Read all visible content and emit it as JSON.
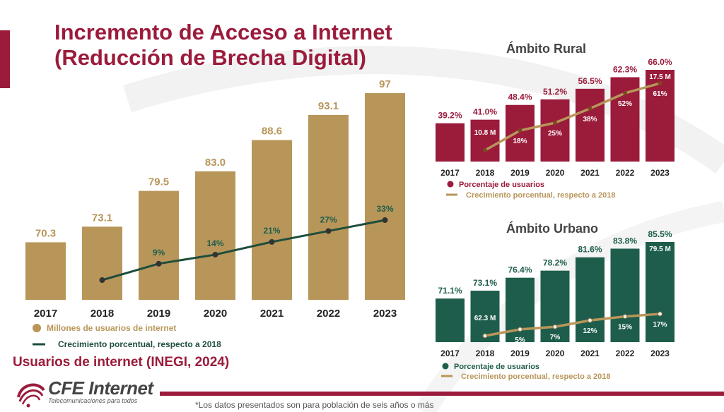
{
  "title_line1": "Incremento de Acceso a Internet",
  "title_line2": "(Reducción de Brecha Digital)",
  "footer": {
    "source": "Usuarios de internet (INEGI, 2024)",
    "logo_brand": "CFE Internet",
    "logo_tagline": "Telecomunicaciones para todos",
    "note": "*Los datos presentados son para población de seis años o más"
  },
  "colors": {
    "brand": "#9b1b3b",
    "gold": "#b8965a",
    "green": "#1e5d4c",
    "line_green": "#1e4d3c",
    "rural": "#9b1b3b",
    "urban": "#1e5d4c"
  },
  "chart_data": [
    {
      "type": "bar",
      "title": "",
      "categories": [
        "2017",
        "2018",
        "2019",
        "2020",
        "2021",
        "2022",
        "2023"
      ],
      "series": [
        {
          "name": "Millones de usuarios de internet",
          "values": [
            70.3,
            73.1,
            79.5,
            83.0,
            88.6,
            93.1,
            97
          ]
        },
        {
          "name": "Crecimiento porcentual, respecto a 2018",
          "type": "line",
          "values": [
            null,
            0,
            9,
            14,
            21,
            27,
            33
          ]
        }
      ],
      "bar_labels": [
        "70.3",
        "73.1",
        "79.5",
        "83.0",
        "88.6",
        "93.1",
        "97"
      ],
      "line_labels": [
        "",
        "",
        "9%",
        "14%",
        "21%",
        "27%",
        "33%"
      ],
      "legend": [
        "Millones de usuarios de internet",
        "Crecimiento porcentual, respecto a 2018"
      ],
      "grid": false,
      "legend_position": "bottom"
    },
    {
      "type": "bar",
      "title": "Ámbito Rural",
      "categories": [
        "2017",
        "2018",
        "2019",
        "2020",
        "2021",
        "2022",
        "2023"
      ],
      "series": [
        {
          "name": "Porcentaje de usuarios",
          "values": [
            39.2,
            41.0,
            48.4,
            51.2,
            56.5,
            62.3,
            66.0
          ]
        },
        {
          "name": "Crecimiento porcentual, respecto a 2018",
          "type": "line",
          "values": [
            null,
            0,
            18,
            25,
            38,
            52,
            61
          ]
        }
      ],
      "bar_labels": [
        "39.2%",
        "41.0%",
        "48.4%",
        "51.2%",
        "56.5%",
        "62.3%",
        "66.0%"
      ],
      "line_labels": [
        "",
        "10.8 M",
        "18%",
        "25%",
        "38%",
        "52%",
        "61%"
      ],
      "extra_label": "17.5 M",
      "legend": [
        "Porcentaje de usuarios",
        "Crecimiento porcentual, respecto a 2018"
      ],
      "grid": false,
      "legend_position": "bottom"
    },
    {
      "type": "bar",
      "title": "Ámbito Urbano",
      "categories": [
        "2017",
        "2018",
        "2019",
        "2020",
        "2021",
        "2022",
        "2023"
      ],
      "series": [
        {
          "name": "Porcentaje de usuarios",
          "values": [
            71.1,
            73.1,
            76.4,
            78.2,
            81.6,
            83.8,
            85.5
          ]
        },
        {
          "name": "Crecimiento porcentual, respecto a 2018",
          "type": "line",
          "values": [
            null,
            0,
            5,
            7,
            12,
            15,
            17
          ]
        }
      ],
      "bar_labels": [
        "71.1%",
        "73.1%",
        "76.4%",
        "78.2%",
        "81.6%",
        "83.8%",
        "85.5%"
      ],
      "line_labels": [
        "",
        "62.3 M",
        "5%",
        "7%",
        "12%",
        "15%",
        "17%"
      ],
      "extra_label": "79.5 M",
      "legend": [
        "Porcentaje de usuarios",
        "Crecimiento porcentual, respecto a 2018"
      ],
      "grid": false,
      "legend_position": "bottom"
    }
  ]
}
